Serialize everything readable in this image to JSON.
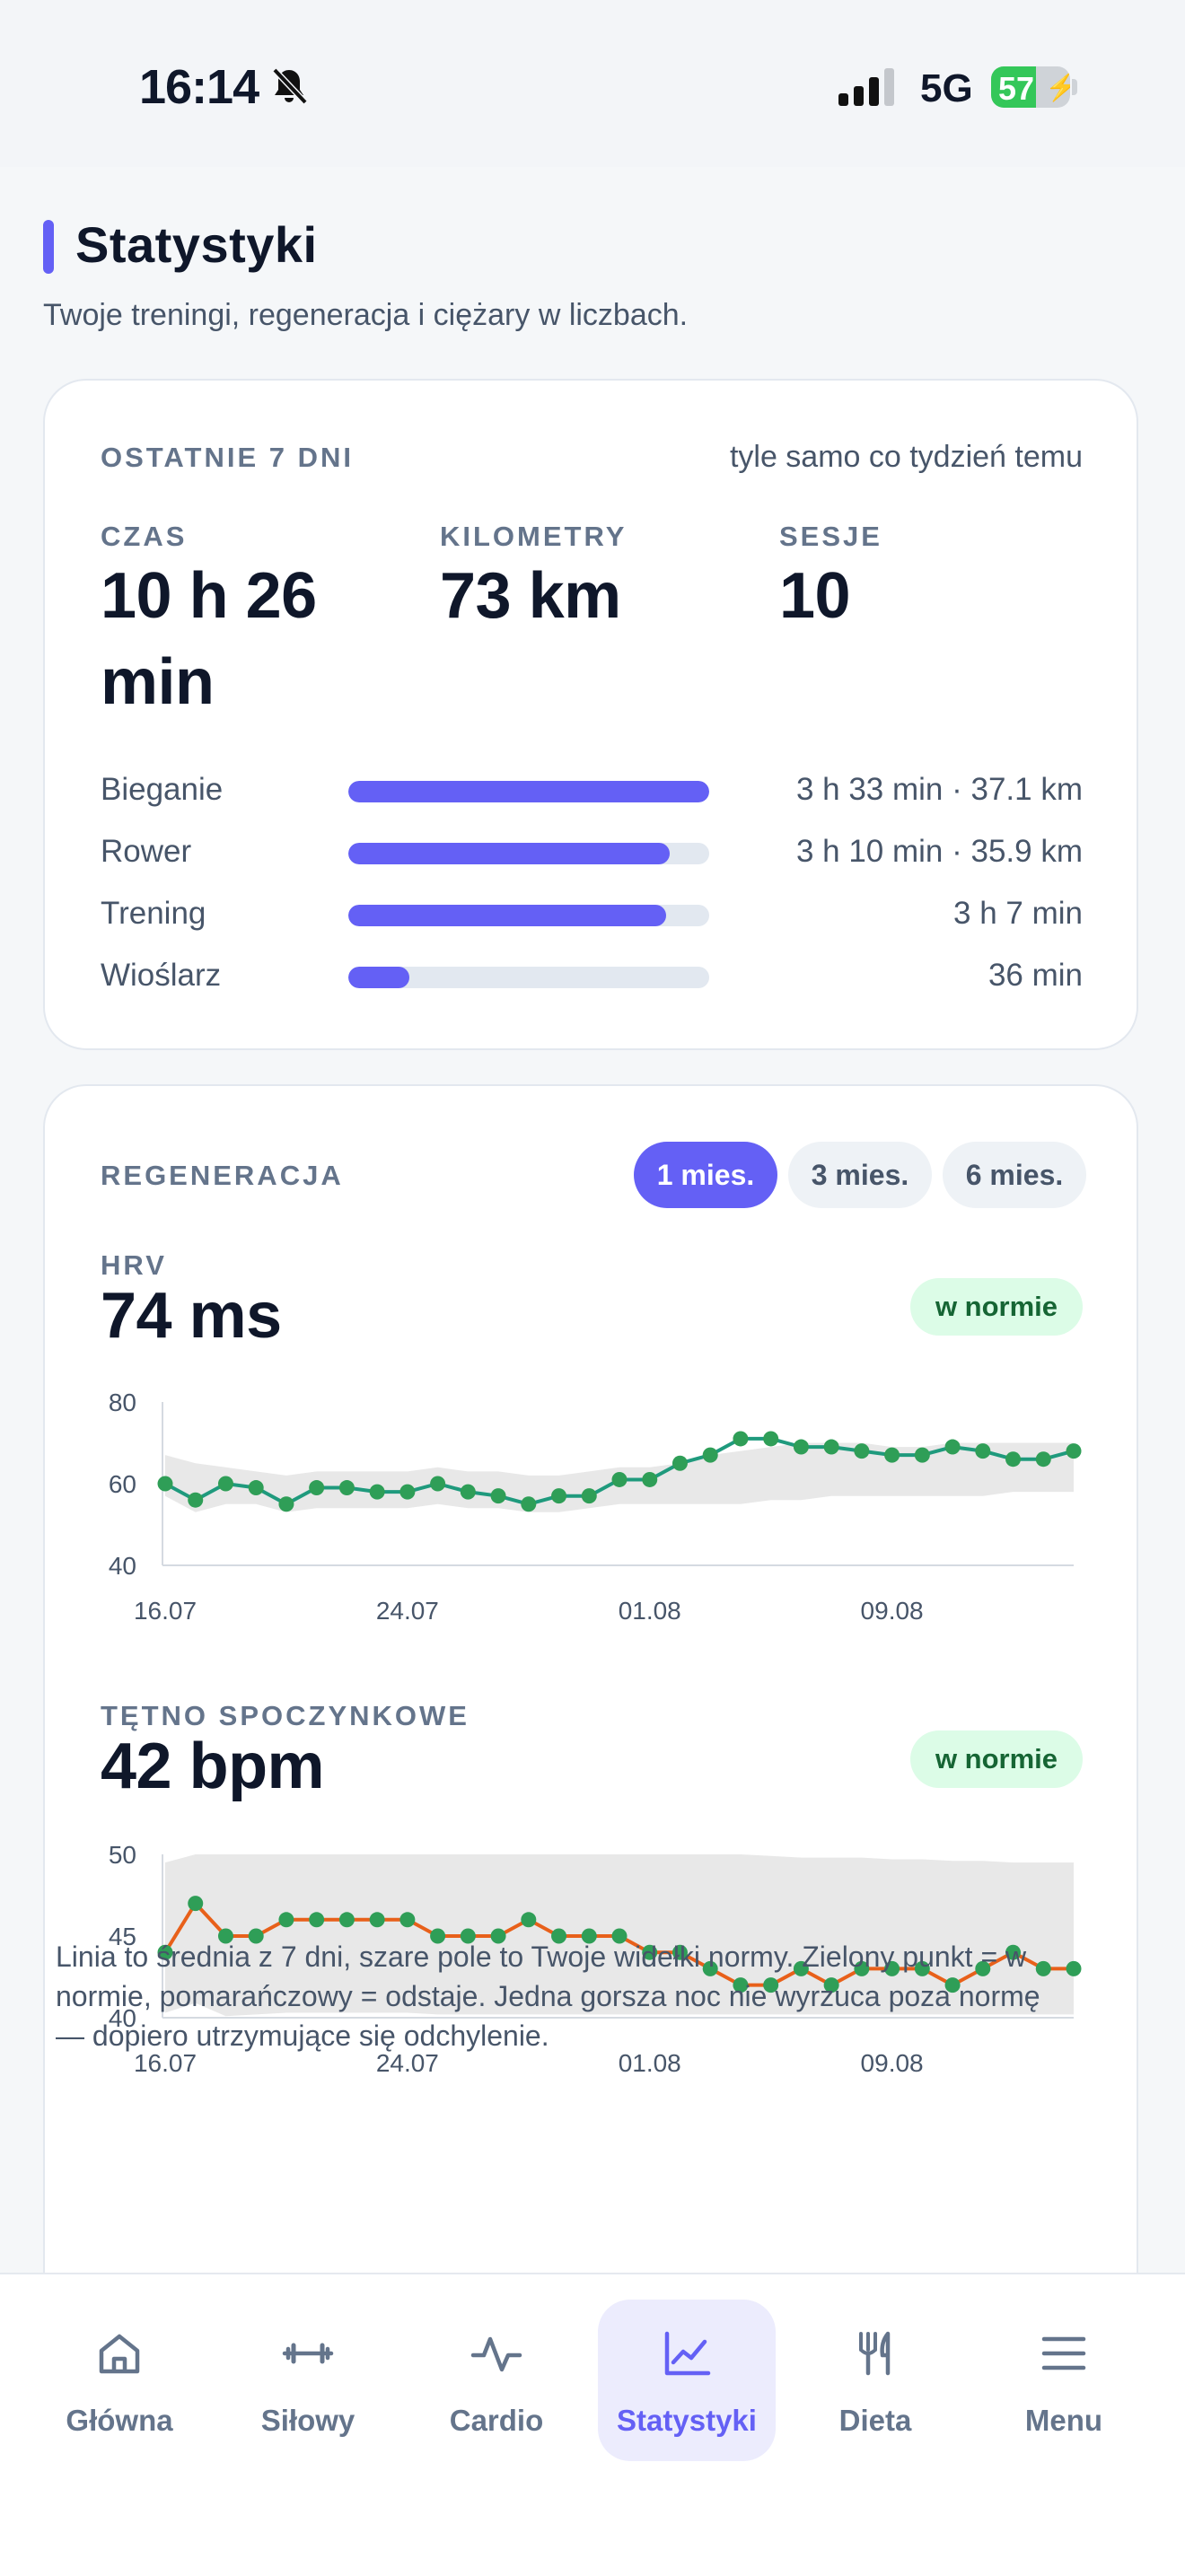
{
  "status_bar": {
    "time": "16:14",
    "network": "5G",
    "battery": "57",
    "battery_level": 0.57
  },
  "header": {
    "title": "Statystyki",
    "subtitle": "Twoje treningi, regeneracja i ciężary w liczbach."
  },
  "weekly": {
    "label": "OSTATNIE 7 DNI",
    "comparison": "tyle samo co tydzień temu",
    "stats": [
      {
        "label": "CZAS",
        "value": "10 h 26 min"
      },
      {
        "label": "KILOMETRY",
        "value": "73 km"
      },
      {
        "label": "SESJE",
        "value": "10"
      }
    ],
    "sports": [
      {
        "name": "Bieganie",
        "value": "3 h 33 min · 37.1 km",
        "share": 1.0
      },
      {
        "name": "Rower",
        "value": "3 h 10 min · 35.9 km",
        "share": 0.89
      },
      {
        "name": "Trening",
        "value": "3 h 7 min",
        "share": 0.88
      },
      {
        "name": "Wioślarz",
        "value": "36 min",
        "share": 0.17
      }
    ]
  },
  "regeneration": {
    "label": "REGENERACJA",
    "ranges": [
      "1 mies.",
      "3 mies.",
      "6 mies."
    ],
    "active_range": "1 mies.",
    "hrv": {
      "label": "HRV",
      "value": "74 ms",
      "status": "w normie"
    },
    "rhr": {
      "label": "TĘTNO SPOCZYNKOWE",
      "value": "42 bpm",
      "status": "w normie"
    },
    "note": "Linia to średnia z 7 dni, szare pole to Twoje widełki normy. Zielony punkt = w normie, pomarańczowy = odstaje. Jedna gorsza noc nie wyrzuca poza normę — dopiero utrzymujące się odchylenie."
  },
  "chart_data": [
    {
      "type": "line",
      "title": "HRV",
      "x_tick_labels": [
        "16.07",
        "24.07",
        "01.08",
        "09.08"
      ],
      "y_ticks": [
        40,
        60,
        80
      ],
      "ylim": [
        40,
        80
      ],
      "series": [
        {
          "values": [
            60,
            56,
            60,
            59,
            55,
            59,
            59,
            58,
            58,
            60,
            58,
            57,
            55,
            57,
            57,
            61,
            61,
            65,
            67,
            71,
            71,
            69,
            69,
            68,
            67,
            67,
            69,
            68,
            66,
            66,
            68
          ],
          "color": "#1f9a7d",
          "point_color": "#2f9e57"
        }
      ],
      "band_upper": [
        67,
        65,
        64,
        63,
        62,
        63,
        63,
        63,
        63,
        64,
        63,
        63,
        62,
        62,
        63,
        64,
        64,
        65,
        67,
        68,
        69,
        70,
        70,
        70,
        69,
        69,
        70,
        70,
        70,
        70,
        70
      ],
      "band_lower": [
        57,
        53,
        55,
        55,
        53,
        54,
        54,
        54,
        54,
        55,
        54,
        54,
        53,
        53,
        54,
        55,
        55,
        55,
        55,
        55,
        56,
        56,
        57,
        57,
        57,
        57,
        57,
        57,
        58,
        58,
        58
      ]
    },
    {
      "type": "line",
      "title": "TĘTNO SPOCZYNKOWE",
      "x_tick_labels": [
        "16.07",
        "24.07",
        "01.08",
        "09.08"
      ],
      "y_ticks": [
        40,
        45,
        50
      ],
      "ylim": [
        40,
        50
      ],
      "series": [
        {
          "values": [
            44,
            47,
            45,
            45,
            46,
            46,
            46,
            46,
            46,
            45,
            45,
            45,
            46,
            45,
            45,
            45,
            44,
            44,
            43,
            42,
            42,
            43,
            42,
            43,
            43,
            43,
            42,
            43,
            44,
            43,
            43
          ],
          "color": "#e8601a",
          "point_color": "#2f9e57"
        }
      ],
      "band_upper": [
        49.5,
        50,
        50,
        50,
        50,
        50,
        50,
        50,
        50,
        50,
        50,
        50,
        50,
        50,
        50,
        50,
        50,
        50,
        50,
        50,
        49.9,
        49.8,
        49.8,
        49.8,
        49.7,
        49.7,
        49.6,
        49.6,
        49.5,
        49.5,
        49.5
      ],
      "band_lower": [
        40.3,
        40.9,
        40.1,
        40.2,
        40.3,
        40.3,
        40.3,
        40.3,
        40.3,
        40.2,
        40.2,
        40.2,
        40.2,
        40.2,
        40.2,
        40.2,
        40.2,
        40.2,
        40.2,
        40.2,
        40.2,
        40.2,
        40.2,
        40.2,
        40.2,
        40.2,
        40.2,
        40.2,
        40.2,
        40.2,
        40.2
      ]
    }
  ],
  "nav": {
    "items": [
      {
        "label": "Główna",
        "icon": "home-icon"
      },
      {
        "label": "Siłowy",
        "icon": "dumbbell-icon"
      },
      {
        "label": "Cardio",
        "icon": "pulse-icon"
      },
      {
        "label": "Statystyki",
        "icon": "chart-icon"
      },
      {
        "label": "Dieta",
        "icon": "cutlery-icon"
      },
      {
        "label": "Menu",
        "icon": "menu-icon"
      }
    ],
    "active": "Statystyki"
  }
}
